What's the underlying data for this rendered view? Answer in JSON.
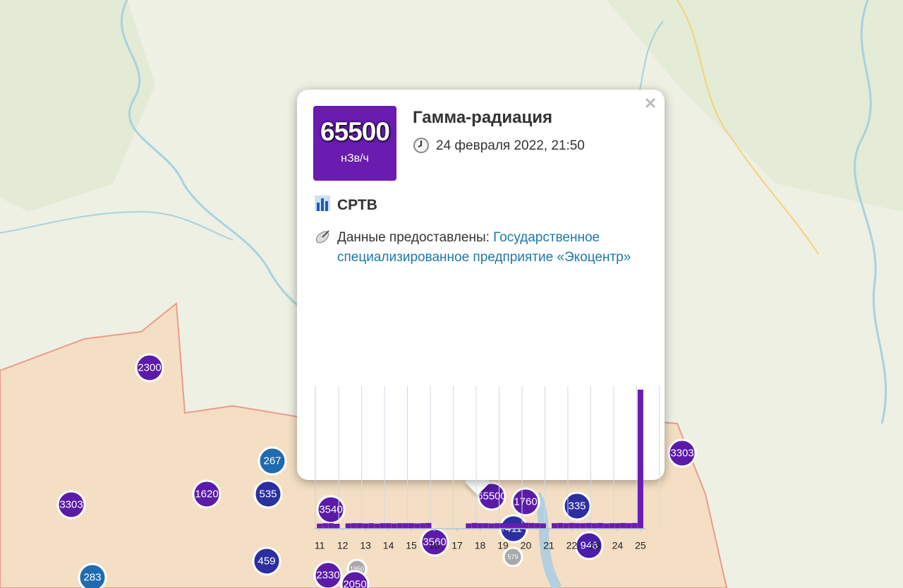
{
  "markers": [
    {
      "value": 2300,
      "color": "#5b1aa8"
    },
    {
      "value": 267,
      "color": "#1f6ab0"
    },
    {
      "value": 1620,
      "color": "#5b1aa8"
    },
    {
      "value": 535,
      "color": "#2b2fa0"
    },
    {
      "value": 3303,
      "color": "#5b1aa8"
    },
    {
      "value": 3540,
      "color": "#5b1aa8"
    },
    {
      "value": 459,
      "color": "#2b2fa0"
    },
    {
      "value": 283,
      "color": "#1f6ab0"
    },
    {
      "value": 2330,
      "color": "#5b1aa8"
    },
    {
      "value": 1950,
      "color": "#a9a9a9"
    },
    {
      "value": 2050,
      "color": "#5b1aa8"
    },
    {
      "value": 3560,
      "color": "#5b1aa8"
    },
    {
      "value": 65500,
      "color": "#5b1aa8"
    },
    {
      "value": 1760,
      "color": "#5b1aa8"
    },
    {
      "value": 411,
      "color": "#2b2fa0"
    },
    {
      "value": 579,
      "color": "#a9a9a9"
    },
    {
      "value": 335,
      "color": "#2b2fa0"
    },
    {
      "value": 946,
      "color": "#4a1ea8"
    },
    {
      "value": 3303,
      "color": "#5b1aa8"
    }
  ],
  "popup": {
    "value": 65500,
    "unit": "нЗв/ч",
    "title": "Гамма-радиация",
    "date": "24 февраля 2022, 21:50",
    "station": "СРТВ",
    "provider_label": "Данные предоставлены:",
    "provider": "Государственное специализированное предприятие «Экоцентр»"
  },
  "chart_data": {
    "type": "bar",
    "color": "#6a1bb0",
    "x": [
      11,
      11.25,
      11.5,
      11.75,
      12,
      12.25,
      12.5,
      12.75,
      13,
      13.25,
      13.5,
      13.75,
      14,
      14.25,
      14.5,
      14.75,
      15,
      15.25,
      15.5,
      15.75,
      16,
      16.25,
      16.5,
      16.75,
      17,
      17.25,
      17.5,
      17.75,
      18,
      18.25,
      18.5,
      18.75,
      19,
      19.25,
      19.5,
      19.75,
      20,
      20.25,
      20.5,
      20.75,
      21,
      21.25,
      21.5,
      21.75,
      22,
      22.25,
      22.5,
      22.75,
      23,
      23.25,
      23.5,
      23.75,
      24,
      24.25,
      24.5,
      24.75,
      25
    ],
    "values": [
      2400,
      2600,
      2600,
      2300,
      null,
      2500,
      2600,
      2600,
      2500,
      2600,
      2400,
      2600,
      2600,
      2500,
      2600,
      2600,
      2600,
      2500,
      2600,
      2700,
      null,
      null,
      null,
      null,
      null,
      null,
      2500,
      2700,
      2600,
      2600,
      2500,
      2600,
      2600,
      2600,
      2500,
      2600,
      2800,
      2700,
      2600,
      2500,
      null,
      2600,
      2700,
      2600,
      2700,
      2600,
      2600,
      2700,
      2600,
      2700,
      2500,
      2600,
      2600,
      2700,
      2600,
      2700,
      65500
    ],
    "xlim": [
      10.78,
      25.22
    ],
    "ylim": [
      0,
      65500
    ],
    "xticks": [
      11,
      12,
      13,
      14,
      15,
      16,
      17,
      18,
      19,
      20,
      21,
      22,
      23,
      24,
      25
    ],
    "grid": true
  }
}
